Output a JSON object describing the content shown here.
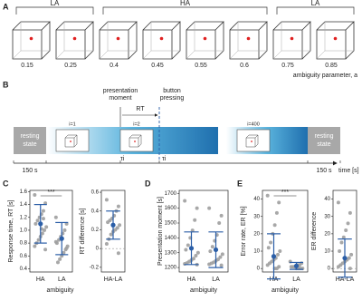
{
  "panels": [
    "A",
    "B",
    "C",
    "D",
    "E"
  ],
  "cubes": {
    "groups": [
      "LA",
      "HA",
      "LA"
    ],
    "values": [
      0.15,
      0.25,
      0.4,
      0.45,
      0.55,
      0.6,
      0.75,
      0.85
    ],
    "axis_label": "ambiguity parameter, a"
  },
  "timeline": {
    "presentation_moment": [
      "presentation",
      "moment"
    ],
    "rt": "RT",
    "button_pressing": [
      "button",
      "pressing"
    ],
    "rest_left": [
      "resting",
      "state"
    ],
    "rest_right": [
      "resting",
      "state"
    ],
    "trials": [
      "i=1",
      "i=2",
      "i=400"
    ],
    "durations": [
      "150 s",
      "150 s"
    ],
    "tau": [
      "τi",
      "τi"
    ],
    "axis_label": "time [s]"
  },
  "chart_data": [
    {
      "type": "strip",
      "ylabel": "Response time, RT [s]",
      "xlabel": "ambiguity",
      "categories": [
        "HA",
        "LA"
      ],
      "annotation": "***",
      "points": [
        [
          1.55,
          1.42,
          1.3,
          1.25,
          1.2,
          1.15,
          1.1,
          1.05,
          1.0,
          0.95,
          0.9,
          0.85,
          0.8,
          0.75,
          0.7,
          1.18,
          1.02
        ],
        [
          1.2,
          1.1,
          1.0,
          0.95,
          0.9,
          0.85,
          0.8,
          0.75,
          0.7,
          0.65,
          0.6,
          0.55,
          0.5,
          0.82,
          0.72
        ]
      ],
      "means": [
        1.1,
        0.87
      ],
      "errors": [
        0.3,
        0.25
      ],
      "point_color": "#9e9e9e",
      "mean_color": "#2b5ea7",
      "ylim": [
        0.35,
        1.62
      ],
      "yticks": [
        0.4,
        0.6,
        0.8,
        {
          "value": 1.0,
          "label": "1.0"
        },
        1.2,
        1.4,
        1.6
      ]
    },
    {
      "type": "strip",
      "ylabel": "RT difference [s]",
      "categories": [
        "HA-LA"
      ],
      "zero_line": true,
      "points": [
        [
          0.52,
          0.45,
          0.4,
          0.35,
          0.32,
          0.3,
          0.28,
          0.25,
          0.22,
          0.2,
          0.18,
          0.15,
          0.1,
          0.05,
          -0.05
        ]
      ],
      "means": [
        0.25
      ],
      "errors": [
        0.15
      ],
      "point_color": "#9e9e9e",
      "mean_color": "#2b5ea7",
      "ylim": [
        -0.25,
        0.62
      ],
      "yticks": [
        -0.2,
        0,
        0.2,
        0.4,
        0.6
      ]
    },
    {
      "type": "strip",
      "ylabel": "Presentation moment [s]",
      "xlabel": "ambiguity",
      "categories": [
        "HA",
        "LA"
      ],
      "points": [
        [
          1650,
          1600,
          1520,
          1450,
          1400,
          1350,
          1320,
          1300,
          1280,
          1260,
          1250,
          1240,
          1230,
          1225,
          1220
        ],
        [
          1600,
          1550,
          1500,
          1420,
          1380,
          1340,
          1310,
          1290,
          1270,
          1255,
          1245,
          1235,
          1228,
          1222,
          1215
        ]
      ],
      "means": [
        1330,
        1320
      ],
      "errors": [
        110,
        120
      ],
      "point_color": "#9e9e9e",
      "mean_color": "#2b5ea7",
      "ylim": [
        1170,
        1720
      ],
      "yticks": [
        1200,
        1300,
        1400,
        1500,
        1600,
        1700
      ]
    },
    {
      "type": "strip",
      "ylabel": "Error rate, ER [%]",
      "xlabel": "ambiguity",
      "categories": [
        "HA",
        "LA"
      ],
      "annotation": "***",
      "points": [
        [
          42,
          38,
          32,
          25,
          20,
          15,
          12,
          10,
          8,
          6,
          5,
          4,
          3,
          2,
          1,
          0,
          0
        ],
        [
          4,
          3,
          2,
          2,
          1,
          1,
          1,
          0,
          0,
          0,
          0
        ]
      ],
      "means": [
        7,
        1.5
      ],
      "errors": [
        13,
        2
      ],
      "point_color": "#9e9e9e",
      "mean_color": "#2b5ea7",
      "ylim": [
        -2,
        45
      ],
      "yticks": [
        0,
        10,
        20,
        30,
        40
      ]
    },
    {
      "type": "strip",
      "ylabel": "ER difference",
      "categories": [
        "HA-LA"
      ],
      "zero_line": true,
      "points": [
        [
          38,
          32,
          26,
          22,
          18,
          15,
          10,
          8,
          6,
          5,
          4,
          3,
          2,
          1,
          0
        ]
      ],
      "means": [
        6
      ],
      "errors": [
        11
      ],
      "point_color": "#9e9e9e",
      "mean_color": "#2b5ea7",
      "ylim": [
        -2,
        45
      ],
      "yticks": [
        0,
        10,
        20,
        30,
        40
      ]
    }
  ]
}
